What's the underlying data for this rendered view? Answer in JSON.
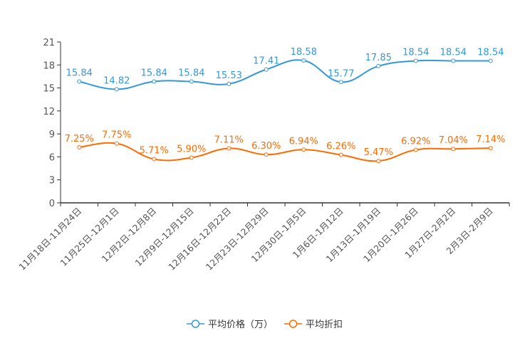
{
  "chart_data": {
    "type": "line",
    "title": "",
    "xlabel": "",
    "ylabel": "",
    "categories": [
      "11月18日-11月24日",
      "11月25日-12月1日",
      "12月2日-12月8日",
      "12月9日-12月15日",
      "12月16日-12月22日",
      "12月23日-12月29日",
      "12月30日-1月5日",
      "1月6日-1月12日",
      "1月13日-1月19日",
      "1月20日-1月26日",
      "1月27日-2月2日",
      "2月3日-2月9日"
    ],
    "ylim": [
      0,
      21
    ],
    "yticks": [
      0,
      3,
      6,
      9,
      12,
      15,
      18,
      21
    ],
    "grid": false,
    "legend_position": "bottom",
    "series": [
      {
        "name": "平均价格（万）",
        "color": "#3398db",
        "values": [
          15.84,
          14.82,
          15.84,
          15.84,
          15.53,
          17.41,
          18.58,
          15.77,
          17.85,
          18.54,
          18.54,
          18.54
        ],
        "labels": [
          "15.84",
          "14.82",
          "15.84",
          "15.84",
          "15.53",
          "17.41",
          "18.58",
          "15.77",
          "17.85",
          "18.54",
          "18.54",
          "18.54"
        ]
      },
      {
        "name": "平均折扣",
        "color": "#ff6a00",
        "values": [
          7.25,
          7.75,
          5.71,
          5.9,
          7.11,
          6.3,
          6.94,
          6.26,
          5.47,
          6.92,
          7.04,
          7.14
        ],
        "labels": [
          "7.25%",
          "7.75%",
          "5.71%",
          "5.90%",
          "7.11%",
          "6.30%",
          "6.94%",
          "6.26%",
          "5.47%",
          "6.92%",
          "7.04%",
          "7.14%"
        ]
      }
    ]
  }
}
